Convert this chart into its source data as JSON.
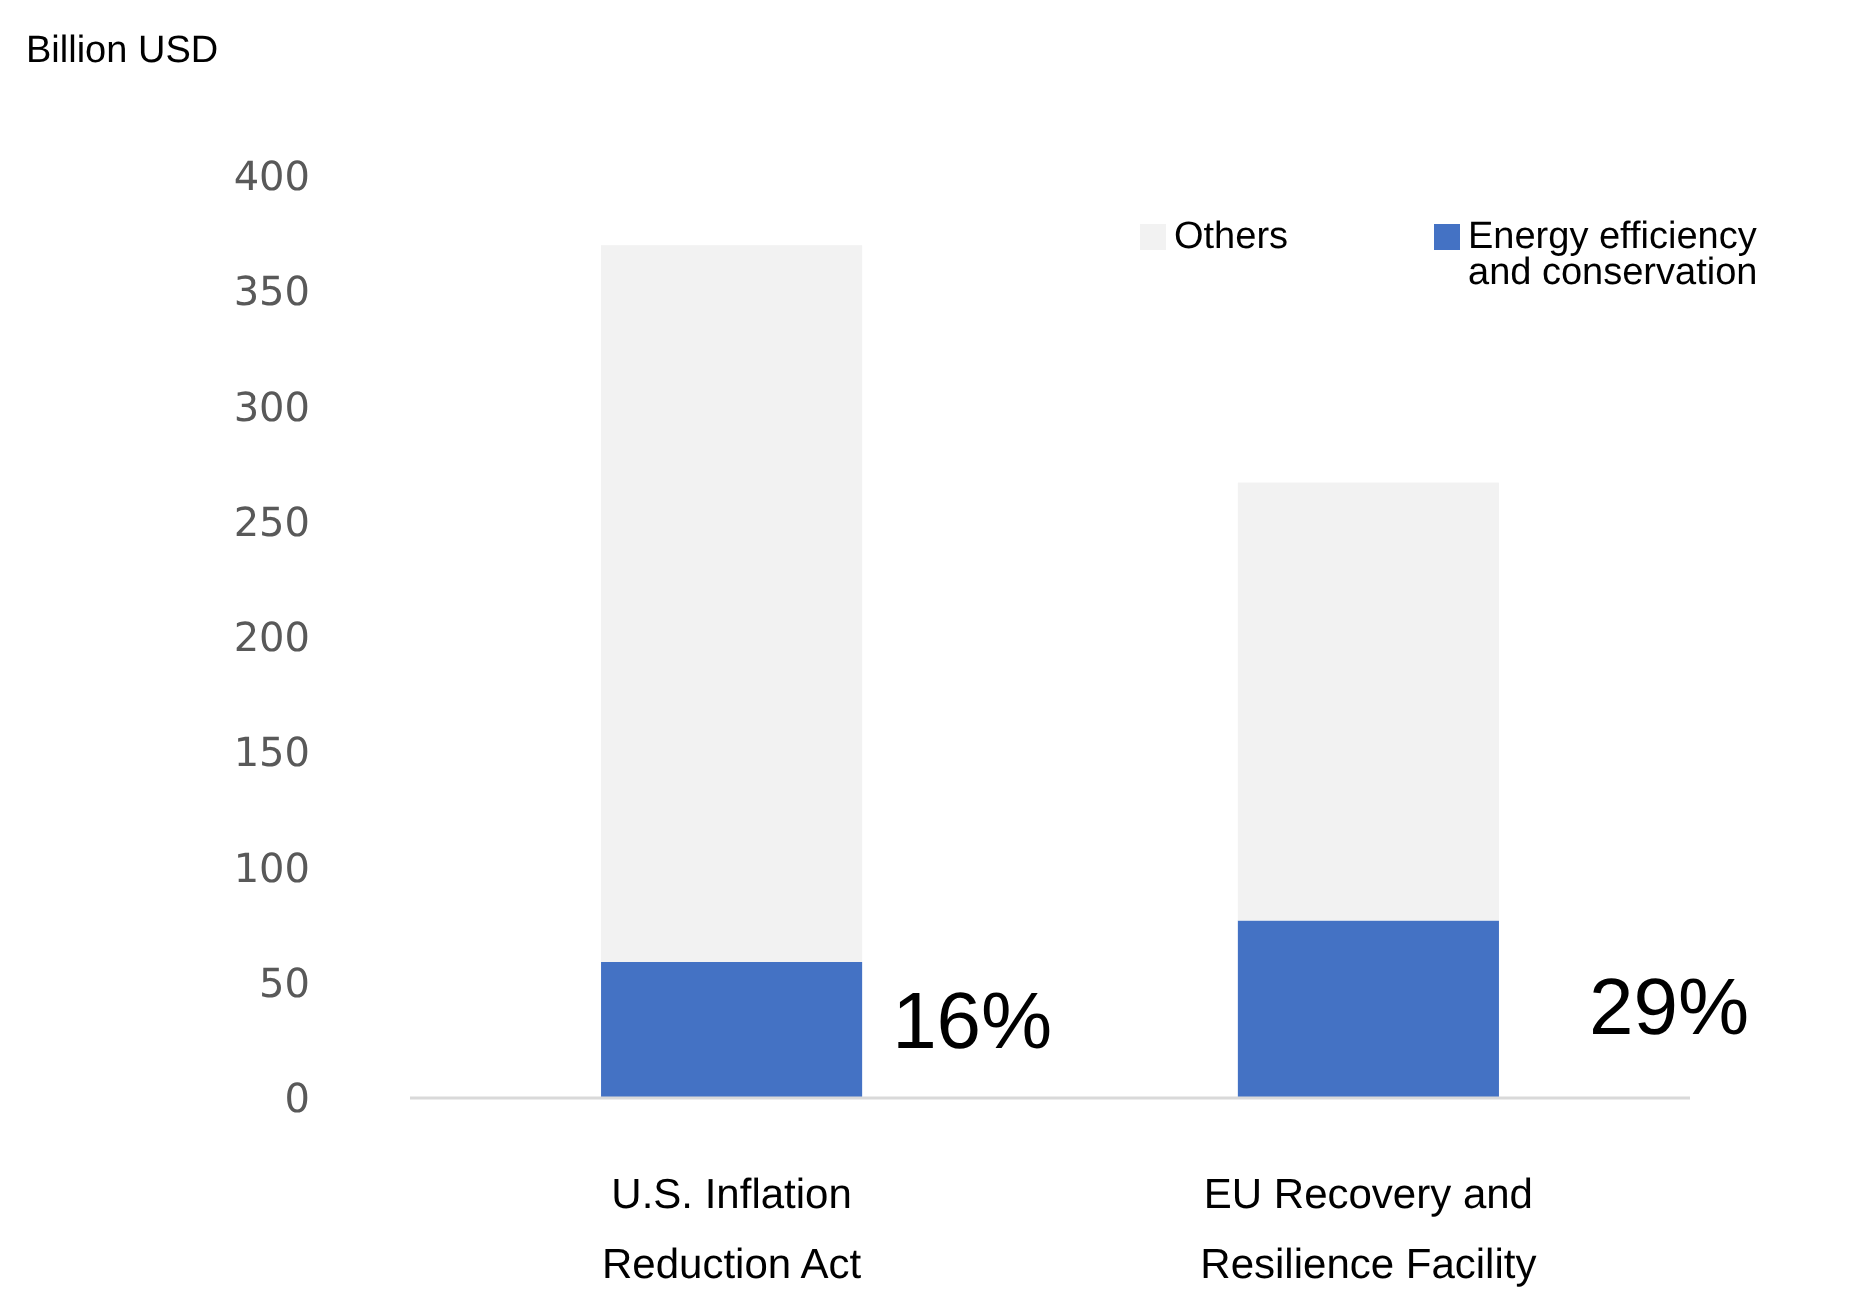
{
  "chart_data": {
    "type": "bar",
    "ylabel": "Billion USD",
    "categories": [
      "U.S. Inflation Reduction Act",
      "EU Recovery and Resilience Facility"
    ],
    "stacked": true,
    "series": [
      {
        "name": "Energy efficiency and conservation",
        "color": "#4472c4",
        "values": [
          59,
          77
        ]
      },
      {
        "name": "Others",
        "color": "#f2f2f2",
        "values": [
          311,
          190
        ]
      }
    ],
    "ylim": [
      0,
      400
    ],
    "yticks": [
      0,
      50,
      100,
      150,
      200,
      250,
      300,
      350,
      400
    ],
    "grid": false,
    "legend": "top right",
    "annotations": [
      "16%",
      "29%"
    ]
  }
}
